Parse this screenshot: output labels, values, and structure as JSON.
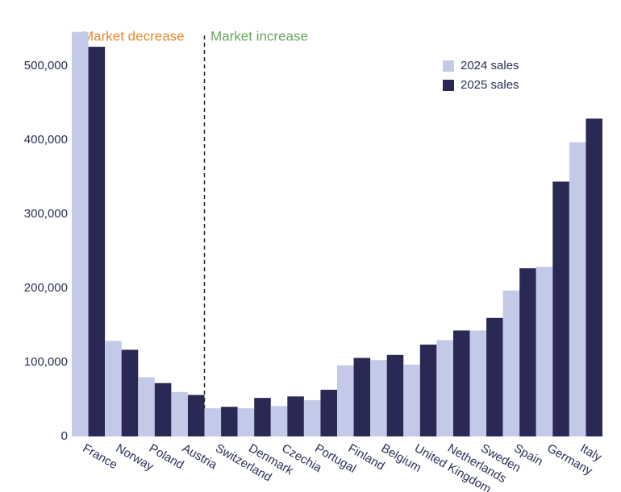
{
  "chart_data": {
    "type": "bar",
    "annotations": [
      "Market decrease",
      "Market increase"
    ],
    "categories": [
      "France",
      "Norway",
      "Poland",
      "Austria",
      "Switzerland",
      "Denmark",
      "Czechia",
      "Portugal",
      "Finland",
      "Belgium",
      "United Kingdom",
      "Netherlands",
      "Sweden",
      "Spain",
      "Germany",
      "Italy"
    ],
    "series": [
      {
        "name": "2024 sales",
        "color": "#c3cae8",
        "values": [
          546000,
          129000,
          80000,
          60000,
          38000,
          38000,
          41000,
          49000,
          96000,
          103000,
          97000,
          130000,
          143000,
          197000,
          229000,
          397000
        ]
      },
      {
        "name": "2025 sales",
        "color": "#2a2854",
        "values": [
          526000,
          117000,
          72000,
          56000,
          40000,
          52000,
          54000,
          63000,
          106000,
          110000,
          124000,
          143000,
          160000,
          227000,
          344000,
          429000
        ]
      }
    ],
    "ylim": [
      0,
      550000
    ],
    "yticks": [
      0,
      {
        "value": 100000,
        "label": "100,000"
      },
      {
        "value": 200000,
        "label": "200,000"
      },
      {
        "value": 300000,
        "label": "300,000"
      },
      {
        "value": 400000,
        "label": "400,000"
      },
      {
        "value": 500000,
        "label": "500,000"
      }
    ],
    "grid": false,
    "legend": "top-right"
  }
}
